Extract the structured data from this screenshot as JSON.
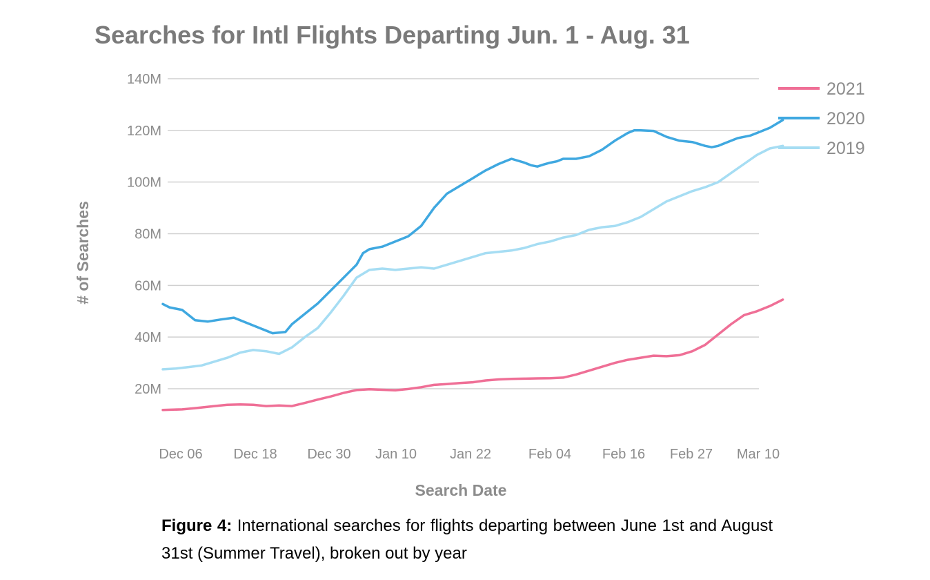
{
  "chart_data": {
    "type": "line",
    "title": "Searches for Intl Flights Departing Jun. 1 - Aug. 31",
    "xlabel": "Search Date",
    "ylabel": "# of Searches",
    "x_tick_labels": [
      "Dec 06",
      "Dec 18",
      "Dec 30",
      "Jan 10",
      "Jan 22",
      "Feb 04",
      "Feb 16",
      "Feb 27",
      "Mar 10"
    ],
    "x_tick_days": [
      5,
      17,
      29,
      40,
      52,
      65,
      77,
      88,
      99
    ],
    "y_ticks": [
      20,
      40,
      60,
      80,
      100,
      120,
      140
    ],
    "y_tick_labels": [
      "20M",
      "40M",
      "60M",
      "80M",
      "100M",
      "120M",
      "140M"
    ],
    "xlim": [
      2,
      99
    ],
    "ylim": [
      0,
      140
    ],
    "grid": true,
    "legend_position": "top-right",
    "series": [
      {
        "name": "2021",
        "color": "#ef6f96",
        "x": [
          2,
          5,
          7,
          10,
          12,
          14,
          16,
          18,
          20,
          22,
          24,
          26,
          28,
          30,
          32,
          34,
          36,
          38,
          40,
          42,
          44,
          46,
          48,
          50,
          52,
          54,
          56,
          58,
          60,
          62,
          64,
          66,
          68,
          70,
          72,
          74,
          76,
          78,
          80,
          82,
          84,
          86,
          88,
          90,
          92,
          94,
          96,
          98
        ],
        "values": [
          11.8,
          12.0,
          12.5,
          13.3,
          13.8,
          13.9,
          13.8,
          13.3,
          13.5,
          13.3,
          14.5,
          15.8,
          17.0,
          18.4,
          19.5,
          19.8,
          19.6,
          19.4,
          19.9,
          20.6,
          21.5,
          21.8,
          22.2,
          22.5,
          23.2,
          23.6,
          23.8,
          23.9,
          24.0,
          24.1,
          24.3,
          25.5,
          27.0,
          28.5,
          30.0,
          31.2,
          32.0,
          32.8,
          32.6,
          33.0,
          34.5,
          37.0,
          41.0,
          45.0,
          48.5,
          50.0,
          52.0,
          54.5
        ]
      },
      {
        "name": "2020",
        "color": "#3fa8e0",
        "x": [
          2,
          3,
          5,
          7,
          9,
          11,
          13,
          15,
          17,
          19,
          21,
          22,
          24,
          26,
          28,
          30,
          32,
          33,
          34,
          36,
          38,
          40,
          42,
          44,
          46,
          48,
          50,
          51,
          52,
          54,
          56,
          58,
          59,
          60,
          61,
          62,
          63,
          64,
          65,
          66,
          68,
          70,
          72,
          74,
          75,
          76,
          78,
          80,
          82,
          84,
          86,
          87,
          88,
          89,
          91,
          92,
          93,
          94,
          96,
          97,
          98
        ],
        "values": [
          52.8,
          51.5,
          50.5,
          46.5,
          46.0,
          46.8,
          47.5,
          45.5,
          43.5,
          41.5,
          42.0,
          45.0,
          49.0,
          53.0,
          58.0,
          63.0,
          68.0,
          72.5,
          74.0,
          75.0,
          77.0,
          79.0,
          83.0,
          90.0,
          95.5,
          98.5,
          101.5,
          103.0,
          104.5,
          107.0,
          109.0,
          107.5,
          106.5,
          106.0,
          106.8,
          107.5,
          108.0,
          109.0,
          109.0,
          109.0,
          110.0,
          112.5,
          116.0,
          119.0,
          120.0,
          120.0,
          119.8,
          117.5,
          116.0,
          115.5,
          114.0,
          113.5,
          114.0,
          115.0,
          117.0,
          117.5,
          118.0,
          119.0,
          121.0,
          122.5,
          124.0
        ]
      },
      {
        "name": "2019",
        "color": "#a6ddf3",
        "x": [
          2,
          4,
          6,
          8,
          10,
          12,
          14,
          16,
          18,
          20,
          22,
          24,
          26,
          28,
          30,
          32,
          34,
          36,
          38,
          40,
          42,
          44,
          46,
          48,
          50,
          52,
          54,
          56,
          58,
          60,
          62,
          64,
          66,
          68,
          70,
          72,
          74,
          76,
          78,
          80,
          82,
          84,
          86,
          88,
          90,
          92,
          94,
          96,
          98
        ],
        "values": [
          27.5,
          27.8,
          28.4,
          29.0,
          30.5,
          32.0,
          34.0,
          35.0,
          34.5,
          33.5,
          36.0,
          40.0,
          43.5,
          49.5,
          56.0,
          63.0,
          66.0,
          66.5,
          66.0,
          66.5,
          67.0,
          66.5,
          68.0,
          69.5,
          71.0,
          72.5,
          73.0,
          73.5,
          74.5,
          76.0,
          77.0,
          78.5,
          79.5,
          81.5,
          82.5,
          83.0,
          84.5,
          86.5,
          89.5,
          92.5,
          94.5,
          96.5,
          98.0,
          100.0,
          103.5,
          107.0,
          110.5,
          113.0,
          114.0
        ]
      }
    ]
  },
  "caption": {
    "label": "Figure 4:",
    "text": "International searches for flights departing between June 1st and August 31st (Summer Travel), broken out by year"
  }
}
